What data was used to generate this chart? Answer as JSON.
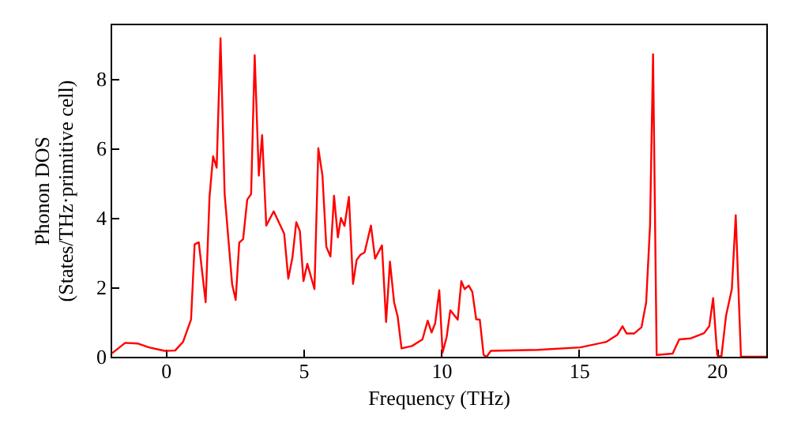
{
  "chart_data": {
    "type": "line",
    "xlabel": "Frequency (THz)",
    "ylabel": "Phonon DOS\n(States/THz·primitive cell)",
    "xlim": [
      -2,
      21.8
    ],
    "ylim": [
      0,
      9.6
    ],
    "xticks": [
      0,
      5,
      10,
      15,
      20
    ],
    "yticks": [
      0,
      2,
      4,
      6,
      8
    ],
    "grid": false,
    "marker": "none",
    "line_style": "solid",
    "series": [
      {
        "color": "#ff0000",
        "x": [
          -1.95,
          -1.47,
          -1.0,
          -0.61,
          -0.04,
          0.34,
          0.63,
          0.92,
          1.05,
          1.2,
          1.45,
          1.59,
          1.72,
          1.85,
          1.99,
          2.14,
          2.41,
          2.54,
          2.67,
          2.81,
          2.96,
          3.1,
          3.23,
          3.38,
          3.5,
          3.65,
          3.92,
          4.3,
          4.45,
          4.6,
          4.74,
          4.87,
          5.0,
          5.14,
          5.4,
          5.54,
          5.69,
          5.83,
          5.98,
          6.11,
          6.25,
          6.36,
          6.49,
          6.65,
          6.8,
          6.93,
          7.07,
          7.22,
          7.45,
          7.6,
          7.85,
          8.0,
          8.14,
          8.29,
          8.42,
          8.56,
          8.94,
          9.32,
          9.51,
          9.65,
          9.78,
          9.93,
          10.05,
          10.2,
          10.33,
          10.6,
          10.73,
          10.85,
          11.0,
          11.13,
          11.27,
          11.4,
          11.54,
          11.65,
          11.8,
          13.5,
          15.05,
          16.0,
          16.39,
          16.58,
          16.73,
          17.0,
          17.27,
          17.44,
          17.58,
          17.69,
          17.82,
          18.4,
          18.64,
          19.06,
          19.54,
          19.73,
          19.87,
          20.02,
          20.17,
          20.34,
          20.55,
          20.69,
          20.88,
          21.8
        ],
        "values": [
          0.1,
          0.4,
          0.38,
          0.27,
          0.17,
          0.18,
          0.43,
          1.07,
          3.24,
          3.3,
          1.57,
          4.6,
          5.78,
          5.45,
          9.18,
          4.69,
          2.1,
          1.64,
          3.29,
          3.39,
          4.53,
          4.69,
          8.69,
          5.22,
          6.39,
          3.78,
          4.19,
          3.55,
          2.25,
          2.86,
          3.88,
          3.62,
          2.18,
          2.68,
          1.95,
          6.01,
          5.22,
          3.17,
          2.89,
          4.64,
          3.44,
          4.0,
          3.77,
          4.61,
          2.1,
          2.79,
          2.94,
          3.01,
          3.78,
          2.83,
          3.21,
          1.0,
          2.74,
          1.57,
          1.16,
          0.24,
          0.31,
          0.5,
          1.04,
          0.7,
          0.96,
          1.92,
          0.12,
          0.58,
          1.34,
          1.07,
          2.18,
          1.95,
          2.05,
          1.87,
          1.08,
          1.07,
          0.05,
          0,
          0.17,
          0.2,
          0.27,
          0.43,
          0.63,
          0.88,
          0.67,
          0.67,
          0.85,
          1.57,
          3.78,
          8.72,
          0.05,
          0.09,
          0.5,
          0.53,
          0.68,
          0.88,
          1.69,
          0.05,
          0,
          1.19,
          1.95,
          4.08,
          0,
          0
        ]
      }
    ]
  }
}
